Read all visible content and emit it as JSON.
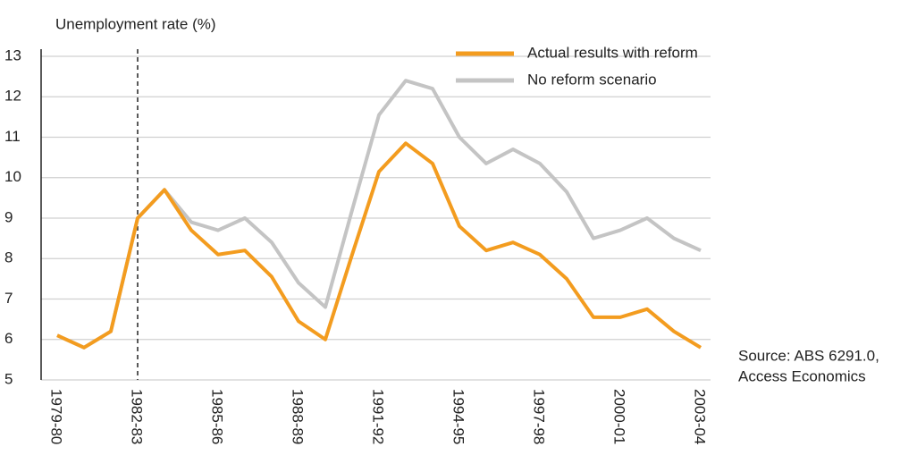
{
  "chart_data": {
    "type": "line",
    "y_label": "Unemployment rate (%)",
    "source": [
      "Source: ABS 6291.0,",
      "Access Economics"
    ],
    "categories": [
      "1979-80",
      null,
      null,
      "1982-83",
      null,
      null,
      "1985-86",
      null,
      null,
      "1988-89",
      null,
      null,
      "1991-92",
      null,
      null,
      "1994-95",
      null,
      null,
      "1997-98",
      null,
      null,
      "2000-01",
      null,
      null,
      "2003-04"
    ],
    "series": [
      {
        "name": "Actual results with reform",
        "color": "#f39c1f",
        "values": [
          6.1,
          5.8,
          6.2,
          9.0,
          9.7,
          8.7,
          8.1,
          8.2,
          7.55,
          6.45,
          6.0,
          8.1,
          10.15,
          10.85,
          10.35,
          8.8,
          8.2,
          8.4,
          8.1,
          7.5,
          6.55,
          6.55,
          6.75,
          6.2,
          5.8
        ]
      },
      {
        "name": "No reform scenario",
        "color": "#c4c4c4",
        "values": [
          6.1,
          5.8,
          6.2,
          9.0,
          9.7,
          8.9,
          8.7,
          9.0,
          8.4,
          7.4,
          6.8,
          9.2,
          11.55,
          12.4,
          12.2,
          11.0,
          10.35,
          10.7,
          10.35,
          9.65,
          8.5,
          8.7,
          9.0,
          8.5,
          8.2
        ]
      }
    ],
    "ylim": [
      5,
      13
    ],
    "yticks": [
      5,
      6,
      7,
      8,
      9,
      10,
      11,
      12,
      13
    ],
    "grid": true
  }
}
